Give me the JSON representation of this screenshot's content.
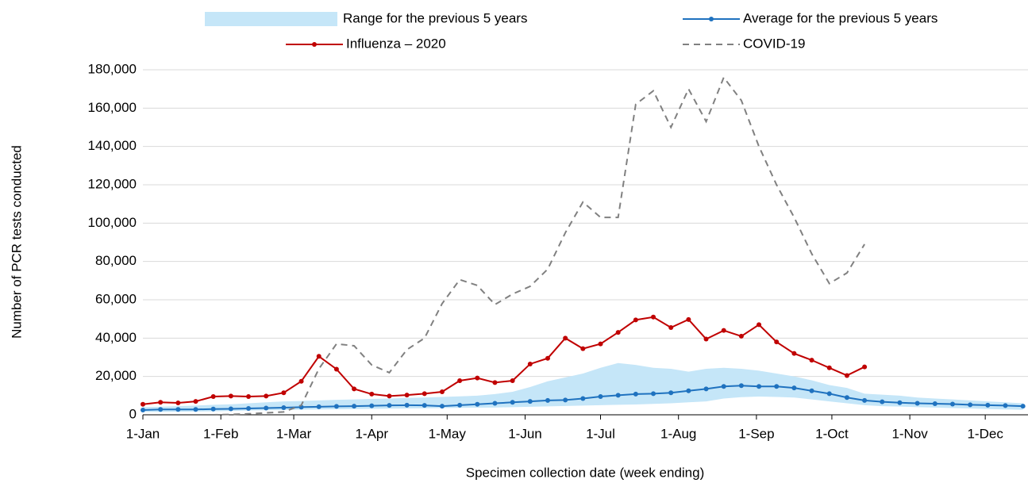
{
  "chart_data": {
    "type": "line",
    "x_label": "Specimen collection date (week ending)",
    "y_label": "Number of PCR tests conducted",
    "x": [
      0,
      7,
      14,
      21,
      28,
      35,
      42,
      49,
      56,
      63,
      70,
      77,
      84,
      91,
      98,
      105,
      112,
      119,
      126,
      133,
      140,
      147,
      154,
      161,
      168,
      175,
      182,
      189,
      196,
      203,
      210,
      217,
      224,
      231,
      238,
      245,
      252,
      259,
      266,
      273,
      280,
      287,
      294,
      301,
      308,
      315,
      322,
      329,
      336,
      343,
      350
    ],
    "xlim": [
      0,
      352
    ],
    "xticks": [
      {
        "value": 0,
        "label": "1-Jan"
      },
      {
        "value": 31,
        "label": "1-Feb"
      },
      {
        "value": 60,
        "label": "1-Mar"
      },
      {
        "value": 91,
        "label": "1-Apr"
      },
      {
        "value": 121,
        "label": "1-May"
      },
      {
        "value": 152,
        "label": "1-Jun"
      },
      {
        "value": 182,
        "label": "1-Jul"
      },
      {
        "value": 213,
        "label": "1-Aug"
      },
      {
        "value": 244,
        "label": "1-Sep"
      },
      {
        "value": 274,
        "label": "1-Oct"
      },
      {
        "value": 305,
        "label": "1-Nov"
      },
      {
        "value": 335,
        "label": "1-Dec"
      }
    ],
    "ylim": [
      0,
      180000
    ],
    "yticks": [
      0,
      {
        "value": 20000,
        "label": "20,000"
      },
      {
        "value": 40000,
        "label": "40,000"
      },
      {
        "value": 60000,
        "label": "60,000"
      },
      {
        "value": 80000,
        "label": "80,000"
      },
      {
        "value": 100000,
        "label": "100,000"
      },
      {
        "value": 120000,
        "label": "120,000"
      },
      {
        "value": 140000,
        "label": "140,000"
      },
      {
        "value": 160000,
        "label": "160,000"
      },
      {
        "value": 180000,
        "label": "180,000"
      }
    ],
    "grid": true,
    "series": [
      {
        "name": "Range for the previous 5 years",
        "type": "band",
        "color": "#c5e6f8",
        "lower": [
          1500,
          1500,
          1600,
          1700,
          1800,
          2000,
          2200,
          2400,
          2500,
          2700,
          2800,
          2900,
          3000,
          3100,
          3200,
          3300,
          3400,
          3500,
          3600,
          3700,
          3800,
          4000,
          4200,
          4400,
          4600,
          4800,
          5000,
          5200,
          5400,
          5700,
          6000,
          6500,
          7000,
          8500,
          9200,
          9500,
          9300,
          9000,
          8000,
          7000,
          6000,
          5000,
          4500,
          4300,
          4000,
          3800,
          3500,
          3300,
          3000,
          2800,
          2600
        ],
        "upper": [
          4000,
          4200,
          4500,
          4800,
          5200,
          5500,
          6000,
          6500,
          7000,
          7200,
          7500,
          7800,
          8000,
          8300,
          8500,
          8800,
          9000,
          9300,
          9600,
          10000,
          10800,
          12000,
          14500,
          17500,
          19500,
          21500,
          24500,
          27000,
          26000,
          24500,
          24000,
          22500,
          24000,
          24500,
          24000,
          23000,
          21500,
          20000,
          18000,
          15500,
          14000,
          11000,
          10500,
          10000,
          9000,
          8500,
          8000,
          7500,
          7000,
          6500,
          6000
        ]
      },
      {
        "name": "Average for the previous 5 years",
        "type": "line",
        "color": "#1f72bf",
        "marker": true,
        "values": [
          2500,
          2800,
          2800,
          2800,
          3000,
          3100,
          3300,
          3500,
          3700,
          4000,
          4200,
          4400,
          4500,
          4700,
          4900,
          5000,
          4900,
          4500,
          5000,
          5500,
          6000,
          6500,
          7000,
          7500,
          7700,
          8500,
          9500,
          10200,
          10800,
          11000,
          11500,
          12500,
          13500,
          14800,
          15200,
          14800,
          14800,
          14000,
          12500,
          11000,
          9000,
          7500,
          6800,
          6300,
          6000,
          5800,
          5600,
          5200,
          5000,
          4800,
          4500
        ]
      },
      {
        "name": "Influenza – 2020",
        "type": "line",
        "color": "#c00000",
        "marker": true,
        "values": [
          5500,
          6500,
          6200,
          7000,
          9500,
          9800,
          9500,
          9800,
          11500,
          17500,
          30500,
          23800,
          13500,
          10800,
          9800,
          10300,
          11000,
          12000,
          17800,
          19200,
          16800,
          17800,
          26500,
          29500,
          40000,
          34500,
          37000,
          43000,
          49500,
          51000,
          45500,
          49700,
          39500,
          44000,
          41000,
          47000,
          38000,
          32000,
          28500,
          24500,
          20500,
          25000,
          null,
          null,
          null,
          null,
          null,
          null,
          null,
          null,
          null
        ]
      },
      {
        "name": "COVID-19",
        "type": "line",
        "color": "#808080",
        "dashed": true,
        "values": [
          null,
          null,
          0,
          0,
          0,
          200,
          500,
          1000,
          1500,
          5000,
          24000,
          37000,
          36000,
          26000,
          22000,
          34000,
          40000,
          58000,
          70500,
          67500,
          57500,
          63000,
          67000,
          76000,
          95000,
          111000,
          103000,
          103000,
          162000,
          169000,
          150000,
          170000,
          153000,
          176000,
          164000,
          140000,
          120000,
          103000,
          84000,
          68500,
          74000,
          89000,
          null,
          null,
          null,
          null,
          null,
          null,
          null,
          null,
          null
        ]
      }
    ]
  }
}
